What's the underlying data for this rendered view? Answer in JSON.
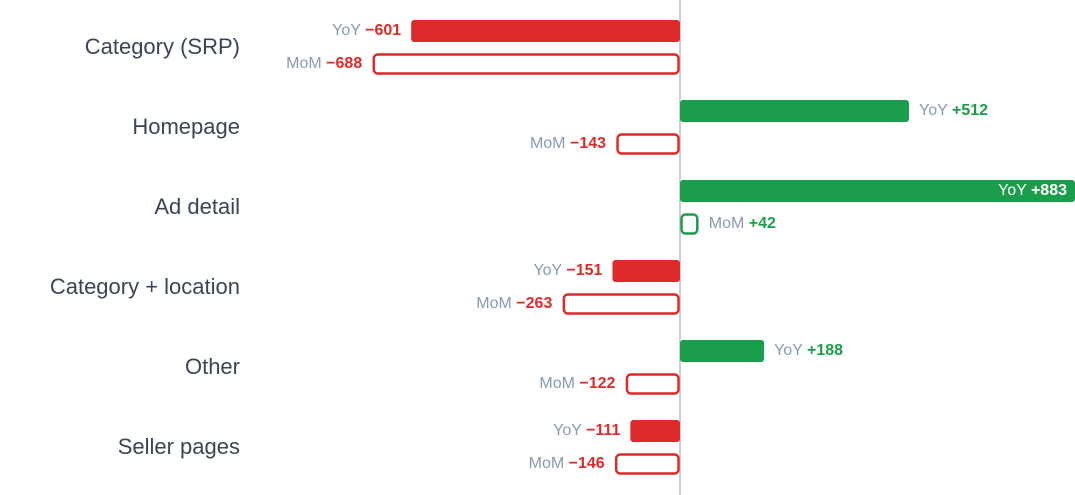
{
  "chart_data": {
    "type": "diverging-bar",
    "categories": [
      "Category (SRP)",
      "Homepage",
      "Ad detail",
      "Category + location",
      "Other",
      "Seller pages"
    ],
    "series": [
      {
        "name": "YoY",
        "style": "filled",
        "values": [
          -601,
          512,
          883,
          -151,
          188,
          -111
        ],
        "value_labels": [
          "−601",
          "+512",
          "+883",
          "−151",
          "+188",
          "−111"
        ]
      },
      {
        "name": "MoM",
        "style": "outline",
        "values": [
          -688,
          -143,
          42,
          -263,
          -122,
          -146
        ],
        "value_labels": [
          "−688",
          "−143",
          "+42",
          "−263",
          "−122",
          "−146"
        ]
      }
    ],
    "colors": {
      "positive": "#1a9e4b",
      "negative": "#dd2a2a"
    }
  }
}
